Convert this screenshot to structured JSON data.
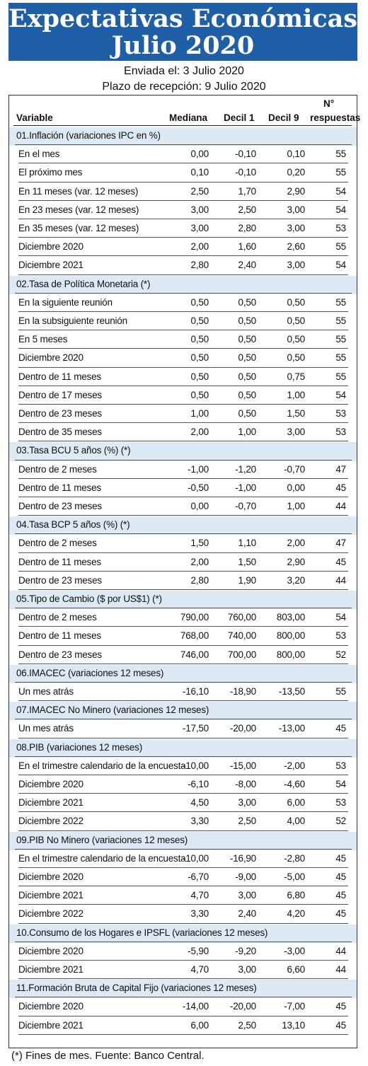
{
  "title_line1": "Expectativas Económicas",
  "title_line2": "Julio 2020",
  "sent": "Enviada el: 3 Julio 2020",
  "deadline": "Plazo de recepción: 9 Julio 2020",
  "headers": {
    "variable": "Variable",
    "mediana": "Mediana",
    "decil1": "Decil 1",
    "decil9": "Decil 9",
    "n_line1": "N°",
    "n_line2": "respuestas"
  },
  "rows": [
    {
      "sec": "01.Inflación (variaciones IPC en %)"
    },
    {
      "label": "En el mes",
      "v": [
        "0,00",
        "-0,10",
        "0,10",
        "55"
      ]
    },
    {
      "label": "El próximo mes",
      "v": [
        "0,10",
        "-0,10",
        "0,20",
        "55"
      ]
    },
    {
      "label": "En 11 meses (var. 12 meses)",
      "v": [
        "2,50",
        "1,70",
        "2,90",
        "54"
      ]
    },
    {
      "label": "En 23 meses (var. 12 meses)",
      "v": [
        "3,00",
        "2,50",
        "3,00",
        "54"
      ]
    },
    {
      "label": "En 35 meses (var. 12 meses)",
      "v": [
        "3,00",
        "2,80",
        "3,00",
        "53"
      ]
    },
    {
      "label": "Diciembre 2020",
      "v": [
        "2,00",
        "1,60",
        "2,60",
        "55"
      ]
    },
    {
      "label": "Diciembre 2021",
      "v": [
        "2,80",
        "2,40",
        "3,00",
        "54"
      ]
    },
    {
      "sec": "02.Tasa de Política Monetaria  (*)"
    },
    {
      "label": "En la siguiente reunión",
      "v": [
        "0,50",
        "0,50",
        "0,50",
        "55"
      ]
    },
    {
      "label": "En la subsiguiente reunión",
      "v": [
        "0,50",
        "0,50",
        "0,50",
        "55"
      ]
    },
    {
      "label": "En 5 meses",
      "v": [
        "0,50",
        "0,50",
        "0,50",
        "55"
      ]
    },
    {
      "label": "Diciembre 2020",
      "v": [
        "0,50",
        "0,50",
        "0,50",
        "55"
      ]
    },
    {
      "label": "Dentro de 11 meses",
      "v": [
        "0,50",
        "0,50",
        "0,75",
        "55"
      ]
    },
    {
      "label": "Dentro de 17 meses",
      "v": [
        "0,50",
        "0,50",
        "1,00",
        "54"
      ]
    },
    {
      "label": "Dentro de 23 meses",
      "v": [
        "1,00",
        "0,50",
        "1,50",
        "53"
      ]
    },
    {
      "label": "Dentro de 35 meses",
      "v": [
        "2,00",
        "1,00",
        "3,00",
        "53"
      ]
    },
    {
      "sec": "03.Tasa BCU 5 años  (%)  (*)"
    },
    {
      "label": "Dentro de 2 meses",
      "v": [
        "-1,00",
        "-1,20",
        "-0,70",
        "47"
      ]
    },
    {
      "label": "Dentro de 11 meses",
      "v": [
        "-0,50",
        "-1,00",
        "0,00",
        "45"
      ]
    },
    {
      "label": "Dentro de 23 meses",
      "v": [
        "0,00",
        "-0,70",
        "1,00",
        "44"
      ]
    },
    {
      "sec": "04.Tasa BCP 5 años  (%) (*)"
    },
    {
      "label": "Dentro de 2 meses",
      "v": [
        "1,50",
        "1,10",
        "2,00",
        "47"
      ]
    },
    {
      "label": "Dentro de 11 meses",
      "v": [
        "2,00",
        "1,50",
        "2,90",
        "45"
      ]
    },
    {
      "label": "Dentro de 23 meses",
      "v": [
        "2,80",
        "1,90",
        "3,20",
        "44"
      ]
    },
    {
      "sec": "05.Tipo de Cambio  ($ por US$1) (*)"
    },
    {
      "label": "Dentro de 2 meses",
      "v": [
        "790,00",
        "760,00",
        "803,00",
        "54"
      ]
    },
    {
      "label": "Dentro de 11 meses",
      "v": [
        "768,00",
        "740,00",
        "800,00",
        "53"
      ]
    },
    {
      "label": "Dentro de 23 meses",
      "v": [
        "746,00",
        "700,00",
        "800,00",
        "52"
      ]
    },
    {
      "sec": "06.IMACEC  (variaciones 12 meses)"
    },
    {
      "label": "Un mes atrás",
      "v": [
        "-16,10",
        "-18,90",
        "-13,50",
        "55"
      ]
    },
    {
      "sec": "07.IMACEC No Minero (variaciones 12 meses)"
    },
    {
      "label": "Un mes atrás",
      "v": [
        "-17,50",
        "-20,00",
        "-13,00",
        "45"
      ]
    },
    {
      "sec": "08.PIB  (variaciones 12 meses)"
    },
    {
      "label": "En el trimestre calendario de la encuesta",
      "v": [
        "-10,00",
        "-15,00",
        "-2,00",
        "53"
      ]
    },
    {
      "label": "Diciembre 2020",
      "v": [
        "-6,10",
        "-8,00",
        "-4,60",
        "54"
      ]
    },
    {
      "label": "Diciembre 2021",
      "v": [
        "4,50",
        "3,00",
        "6,00",
        "53"
      ]
    },
    {
      "label": "Diciembre 2022",
      "v": [
        "3,30",
        "2,50",
        "4,00",
        "52"
      ]
    },
    {
      "sec": "09.PIB No Minero (variaciones 12 meses)"
    },
    {
      "label": "En el trimestre calendario de la encuesta",
      "v": [
        "-10,00",
        "-16,90",
        "-2,80",
        "45"
      ]
    },
    {
      "label": "Diciembre 2020",
      "v": [
        "-6,70",
        "-9,00",
        "-5,00",
        "45"
      ]
    },
    {
      "label": "Diciembre 2021",
      "v": [
        "4,70",
        "3,00",
        "6,80",
        "45"
      ]
    },
    {
      "label": "Diciembre 2022",
      "v": [
        "3,30",
        "2,40",
        "4,20",
        "45"
      ]
    },
    {
      "sec": "10.Consumo de los Hogares e IPSFL  (variaciones 12 meses)"
    },
    {
      "label": "Diciembre 2020",
      "v": [
        "-5,90",
        "-9,20",
        "-3,00",
        "44"
      ]
    },
    {
      "label": "Diciembre 2021",
      "v": [
        "4,70",
        "3,00",
        "6,60",
        "44"
      ]
    },
    {
      "sec": "11.Formación Bruta de Capital Fijo  (variaciones 12 meses)"
    },
    {
      "label": "Diciembre 2020",
      "v": [
        "-14,00",
        "-20,00",
        "-7,00",
        "45"
      ]
    },
    {
      "label": "Diciembre 2021",
      "v": [
        "6,00",
        "2,50",
        "13,10",
        "45"
      ]
    }
  ],
  "footnote": "(*) Fines de mes. Fuente: Banco Central."
}
